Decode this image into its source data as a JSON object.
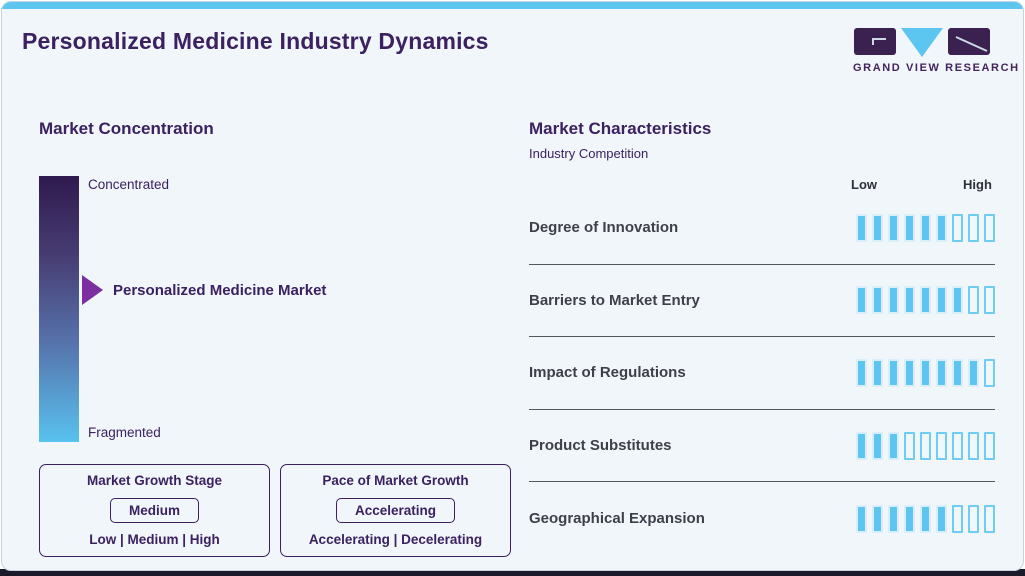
{
  "page": {
    "title": "Personalized Medicine Industry Dynamics",
    "brand": "GRAND VIEW RESEARCH"
  },
  "market_concentration": {
    "heading": "Market Concentration",
    "scale_top": "Concentrated",
    "scale_bottom": "Fragmented",
    "pointer_label": "Personalized Medicine Market",
    "growth_stage": {
      "title": "Market Growth Stage",
      "value": "Medium",
      "options": "Low | Medium | High"
    },
    "growth_pace": {
      "title": "Pace of Market Growth",
      "value": "Accelerating",
      "options": "Accelerating | Decelerating"
    }
  },
  "market_characteristics": {
    "heading": "Market Characteristics",
    "subheading": "Industry Competition",
    "scale_low": "Low",
    "scale_high": "High",
    "rows": [
      {
        "label": "Degree of Innovation",
        "filled": 6,
        "total": 9
      },
      {
        "label": "Barriers to Market Entry",
        "filled": 7,
        "total": 9
      },
      {
        "label": "Impact of Regulations",
        "filled": 8,
        "total": 9
      },
      {
        "label": "Product Substitutes",
        "filled": 3,
        "total": 9
      },
      {
        "label": "Geographical Expansion",
        "filled": 6,
        "total": 9
      }
    ]
  },
  "chart_data": [
    {
      "type": "bar",
      "title": "Market Characteristics - Industry Competition",
      "categories": [
        "Degree of Innovation",
        "Barriers to Market Entry",
        "Impact of Regulations",
        "Product Substitutes",
        "Geographical Expansion"
      ],
      "values": [
        6,
        7,
        8,
        3,
        6
      ],
      "xlabel": "Rating (Low to High)",
      "ylabel": "",
      "value_max": 9,
      "legend": [
        "filled = rating level out of 9 segments"
      ],
      "orientation": "horizontal-segments"
    },
    {
      "type": "area",
      "title": "Market Concentration",
      "categories": [
        "Concentrated",
        "Fragmented"
      ],
      "values": [
        "Personalized Medicine Market positioned between Concentrated and Fragmented, pointer at ~40% from Concentrated end"
      ],
      "annotations": [
        "Market Growth Stage: Medium (options Low | Medium | High)",
        "Pace of Market Growth: Accelerating (options Accelerating | Decelerating)"
      ]
    }
  ],
  "colors": {
    "accent": "#5CC6F0",
    "deep_purple": "#3B2160",
    "logo_purple": "#3A2150",
    "arrow_purple": "#7B2FA0",
    "gradient_top": "#2F1A4E",
    "gradient_bottom": "#58C2EE",
    "row_label": "#3F3F4A",
    "card_bg": "#F0F6FA",
    "footer_dark": "#1A1A2B"
  }
}
